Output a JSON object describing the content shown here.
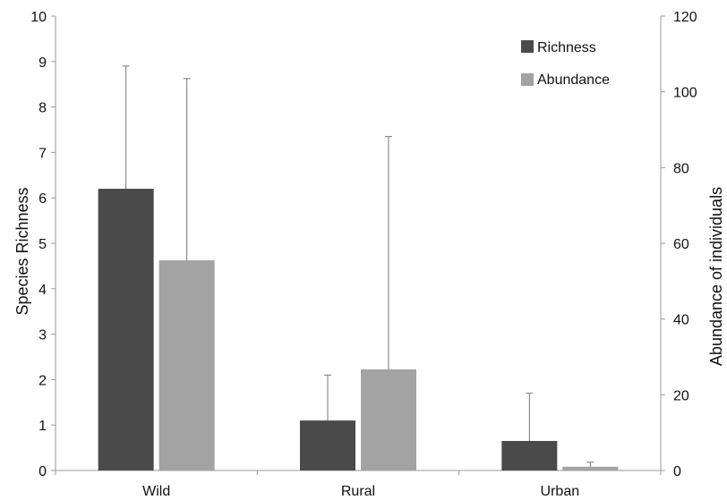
{
  "chart_data": {
    "type": "bar",
    "categories": [
      "Wild",
      "Rural",
      "Urban"
    ],
    "series": [
      {
        "name": "Richness",
        "axis": "left",
        "color": "#4a4a4a",
        "values": [
          6.2,
          1.1,
          0.65
        ],
        "error_upper": [
          8.9,
          2.1,
          1.7
        ]
      },
      {
        "name": "Abundance",
        "axis": "right",
        "color": "#a3a3a3",
        "values": [
          55.5,
          26.7,
          1.0
        ],
        "error_upper": [
          103.5,
          88.2,
          2.2
        ]
      }
    ],
    "ylabel": "Species Richness",
    "ylabel_right": "Abundance of individuals",
    "ylim": [
      0,
      10
    ],
    "ylim_right": [
      0,
      120
    ],
    "yticks": [
      "0",
      "1",
      "2",
      "3",
      "4",
      "5",
      "6",
      "7",
      "8",
      "9",
      "10"
    ],
    "yticks_right": [
      "0",
      "20",
      "40",
      "60",
      "80",
      "100",
      "120"
    ],
    "legend_position": "top-right",
    "grid": false
  }
}
